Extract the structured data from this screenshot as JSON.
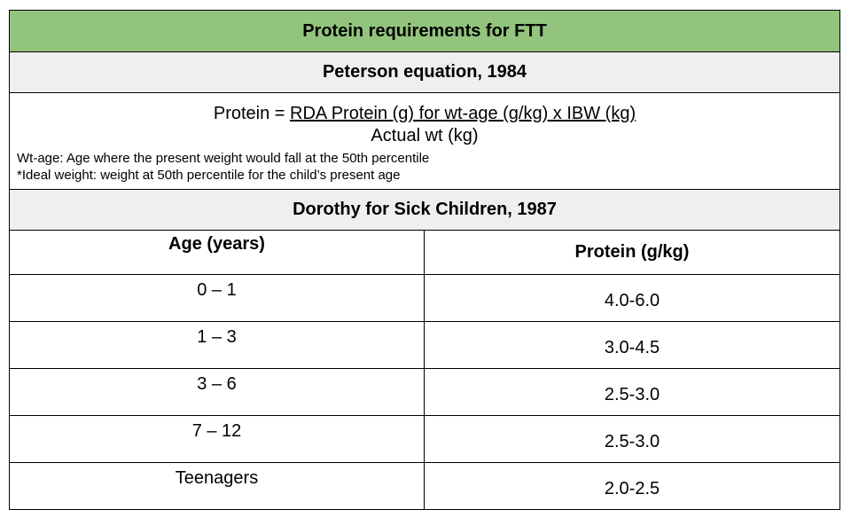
{
  "colors": {
    "title_bg": "#93c47d",
    "band_bg": "#efefef",
    "border": "#000000"
  },
  "title": "Protein requirements for FTT",
  "peterson": {
    "heading": "Peterson equation, 1984",
    "formula_prefix": "Protein = ",
    "formula_numerator": "RDA Protein (g) for wt-age (g/kg) x IBW (kg)",
    "formula_denominator": "Actual wt (kg)",
    "note_1": "Wt-age: Age where the present weight would fall at the 50th percentile",
    "note_2": "*Ideal weight: weight at 50th percentile for the child’s present age"
  },
  "dorothy": {
    "heading": "Dorothy for Sick Children, 1987",
    "col_age": "Age (years)",
    "col_protein": "Protein (g/kg)",
    "rows": [
      {
        "age": "0 – 1",
        "protein": "4.0-6.0"
      },
      {
        "age": "1 – 3",
        "protein": "3.0-4.5"
      },
      {
        "age": "3 – 6",
        "protein": "2.5-3.0"
      },
      {
        "age": "7 – 12",
        "protein": "2.5-3.0"
      },
      {
        "age": "Teenagers",
        "protein": "2.0-2.5"
      }
    ]
  }
}
